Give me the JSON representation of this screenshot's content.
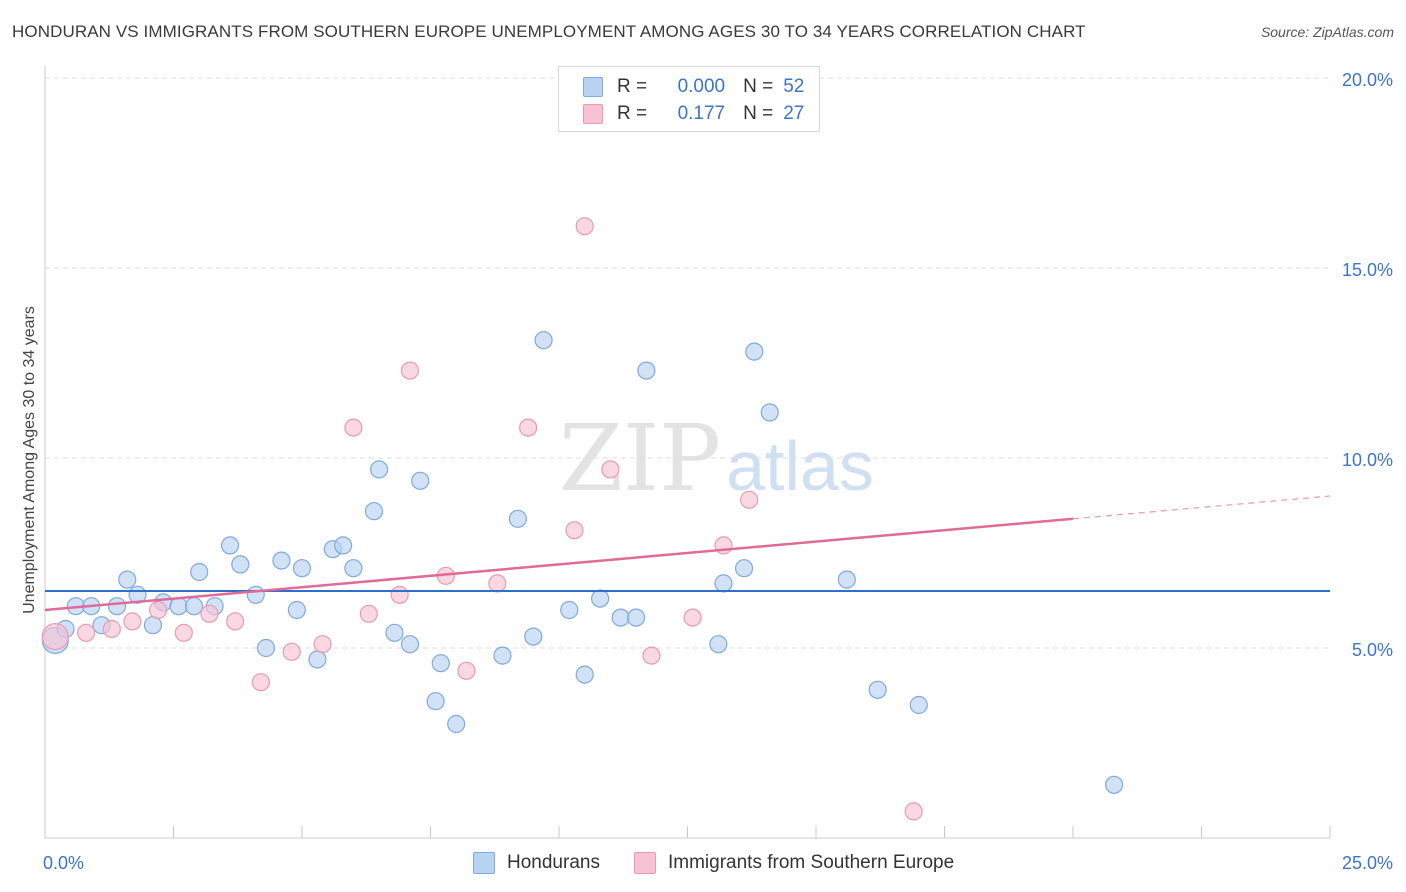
{
  "header": {
    "title": "HONDURAN VS IMMIGRANTS FROM SOUTHERN EUROPE UNEMPLOYMENT AMONG AGES 30 TO 34 YEARS CORRELATION CHART",
    "source": "Source: ZipAtlas.com"
  },
  "watermark": {
    "zip": "ZIP",
    "atlas": "atlas"
  },
  "legend": {
    "rows": [
      {
        "r_label": "R =",
        "r_value": "0.000",
        "n_label": "N =",
        "n_value": "52"
      },
      {
        "r_label": "R =",
        "r_value": "0.177",
        "n_label": "N =",
        "n_value": "27"
      }
    ]
  },
  "colors": {
    "blue_fill": "#b9d3f3",
    "blue_stroke": "#7fa9df",
    "blue_line": "#2f6fc9",
    "pink_fill": "#f7c3d4",
    "pink_stroke": "#e99ab3",
    "pink_line": "#e06b98",
    "axis_text": "#3d74c6"
  },
  "chart_data": {
    "type": "scatter",
    "title": "HONDURAN VS IMMIGRANTS FROM SOUTHERN EUROPE UNEMPLOYMENT AMONG AGES 30 TO 34 YEARS CORRELATION CHART",
    "xlabel": "",
    "ylabel": "Unemployment Among Ages 30 to 34 years",
    "xlim": [
      0,
      25
    ],
    "ylim": [
      0,
      20
    ],
    "x_tick_labels": [
      {
        "value": 0,
        "label": "0.0%"
      },
      {
        "value": 25,
        "label": "25.0%"
      }
    ],
    "y_tick_labels": [
      {
        "value": 5,
        "label": "5.0%"
      },
      {
        "value": 10,
        "label": "10.0%"
      },
      {
        "value": 15,
        "label": "15.0%"
      },
      {
        "value": 20,
        "label": "20.0%"
      }
    ],
    "grid": true,
    "series": [
      {
        "name": "Hondurans",
        "r": 0.0,
        "n": 52,
        "trend": {
          "x0": 0,
          "y0": 6.5,
          "x1": 25,
          "y1": 6.5
        },
        "points": [
          [
            0.2,
            5.2
          ],
          [
            0.4,
            5.5
          ],
          [
            0.6,
            6.1
          ],
          [
            0.9,
            6.1
          ],
          [
            1.1,
            5.6
          ],
          [
            1.4,
            6.1
          ],
          [
            1.6,
            6.8
          ],
          [
            1.8,
            6.4
          ],
          [
            2.1,
            5.6
          ],
          [
            2.3,
            6.2
          ],
          [
            2.6,
            6.1
          ],
          [
            3.0,
            7.0
          ],
          [
            2.9,
            6.1
          ],
          [
            3.3,
            6.1
          ],
          [
            3.6,
            7.7
          ],
          [
            3.8,
            7.2
          ],
          [
            4.1,
            6.4
          ],
          [
            4.3,
            5.0
          ],
          [
            4.6,
            7.3
          ],
          [
            4.9,
            6.0
          ],
          [
            5.0,
            7.1
          ],
          [
            5.3,
            4.7
          ],
          [
            5.6,
            7.6
          ],
          [
            5.8,
            7.7
          ],
          [
            6.0,
            7.1
          ],
          [
            6.4,
            8.6
          ],
          [
            6.5,
            9.7
          ],
          [
            6.8,
            5.4
          ],
          [
            7.1,
            5.1
          ],
          [
            7.3,
            9.4
          ],
          [
            7.6,
            3.6
          ],
          [
            7.7,
            4.6
          ],
          [
            8.0,
            3.0
          ],
          [
            8.9,
            4.8
          ],
          [
            9.2,
            8.4
          ],
          [
            9.5,
            5.3
          ],
          [
            9.7,
            13.1
          ],
          [
            10.2,
            6.0
          ],
          [
            10.5,
            4.3
          ],
          [
            10.8,
            6.3
          ],
          [
            11.2,
            5.8
          ],
          [
            11.5,
            5.8
          ],
          [
            11.7,
            12.3
          ],
          [
            13.1,
            5.1
          ],
          [
            13.2,
            6.7
          ],
          [
            13.6,
            7.1
          ],
          [
            13.8,
            12.8
          ],
          [
            14.1,
            11.2
          ],
          [
            15.6,
            6.8
          ],
          [
            16.2,
            3.9
          ],
          [
            17.0,
            3.5
          ],
          [
            20.8,
            1.4
          ]
        ]
      },
      {
        "name": "Immigrants from Southern Europe",
        "r": 0.177,
        "n": 27,
        "trend": {
          "x0": 0,
          "y0": 6.0,
          "x1": 20,
          "y1": 8.4,
          "dashed_to_x": 25,
          "dashed_to_y": 9.0
        },
        "points": [
          [
            0.2,
            5.3
          ],
          [
            0.8,
            5.4
          ],
          [
            1.3,
            5.5
          ],
          [
            1.7,
            5.7
          ],
          [
            2.2,
            6.0
          ],
          [
            2.7,
            5.4
          ],
          [
            3.2,
            5.9
          ],
          [
            3.7,
            5.7
          ],
          [
            4.2,
            4.1
          ],
          [
            4.8,
            4.9
          ],
          [
            5.4,
            5.1
          ],
          [
            6.0,
            10.8
          ],
          [
            6.3,
            5.9
          ],
          [
            6.9,
            6.4
          ],
          [
            7.1,
            12.3
          ],
          [
            7.8,
            6.9
          ],
          [
            8.2,
            4.4
          ],
          [
            8.8,
            6.7
          ],
          [
            9.4,
            10.8
          ],
          [
            10.3,
            8.1
          ],
          [
            10.5,
            16.1
          ],
          [
            11.0,
            9.7
          ],
          [
            11.8,
            4.8
          ],
          [
            12.6,
            5.8
          ],
          [
            13.2,
            7.7
          ],
          [
            13.7,
            8.9
          ],
          [
            16.9,
            0.7
          ]
        ]
      }
    ]
  }
}
